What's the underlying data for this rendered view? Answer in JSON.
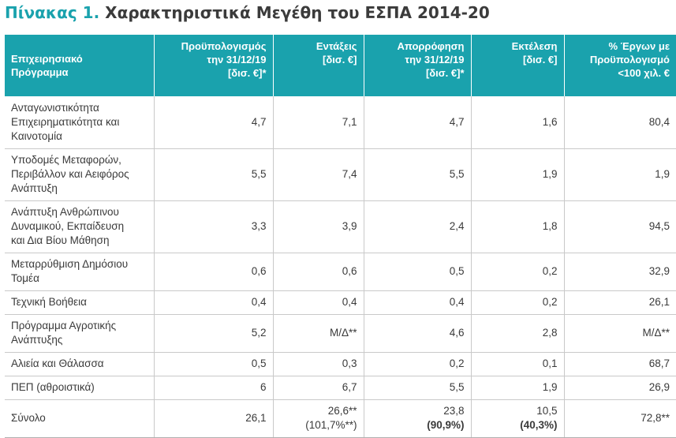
{
  "title": {
    "label": "Πίνακας 1.",
    "text": "Χαρακτηριστικά Μεγέθη του ΕΣΠΑ 2014-20"
  },
  "columns": [
    [
      "Επιχειρησιακό",
      "Πρόγραμμα"
    ],
    [
      "Προϋπολογισμός",
      "την 31/12/19",
      "[δισ. €]*"
    ],
    [
      "Εντάξεις",
      "[δισ. €]"
    ],
    [
      "Απορρόφηση",
      "την 31/12/19",
      "[δισ. €]*"
    ],
    [
      "Εκτέλεση",
      "[δισ. €]"
    ],
    [
      "% Έργων με",
      "Προϋπολογισμό",
      "<100 χιλ. €"
    ]
  ],
  "rows": [
    {
      "program": [
        "Ανταγωνιστικότητα",
        "Επιχειρηματικότητα και",
        "Καινοτομία"
      ],
      "budget": "4,7",
      "entaxeis": "7,1",
      "absorption": "4,7",
      "execution": "1,6",
      "pct": "80,4"
    },
    {
      "program": [
        "Υποδομές Μεταφορών,",
        "Περιβάλλον και Αειφόρος",
        "Ανάπτυξη"
      ],
      "budget": "5,5",
      "entaxeis": "7,4",
      "absorption": "5,5",
      "execution": "1,9",
      "pct": "1,9"
    },
    {
      "program": [
        "Ανάπτυξη Ανθρώπινου",
        "Δυναμικού, Εκπαίδευση",
        "και Δια Βίου Μάθηση"
      ],
      "budget": "3,3",
      "entaxeis": "3,9",
      "absorption": "2,4",
      "execution": "1,8",
      "pct": "94,5"
    },
    {
      "program": [
        "Μεταρρύθμιση Δημόσιου",
        "Τομέα"
      ],
      "budget": "0,6",
      "entaxeis": "0,6",
      "absorption": "0,5",
      "execution": "0,2",
      "pct": "32,9"
    },
    {
      "program": [
        "Τεχνική Βοήθεια"
      ],
      "budget": "0,4",
      "entaxeis": "0,4",
      "absorption": "0,4",
      "execution": "0,2",
      "pct": "26,1"
    },
    {
      "program": [
        "Πρόγραμμα Αγροτικής",
        "Ανάπτυξης"
      ],
      "budget": "5,2",
      "entaxeis": "Μ/Δ**",
      "absorption": "4,6",
      "execution": "2,8",
      "pct": "Μ/Δ**"
    },
    {
      "program": [
        "Αλιεία και Θάλασσα"
      ],
      "budget": "0,5",
      "entaxeis": "0,3",
      "absorption": "0,2",
      "execution": "0,1",
      "pct": "68,7"
    },
    {
      "program": [
        "ΠΕΠ (αθροιστικά)"
      ],
      "budget": "6",
      "entaxeis": "6,7",
      "absorption": "5,5",
      "execution": "1,9",
      "pct": "26,9"
    }
  ],
  "total": {
    "program": "Σύνολο",
    "budget": "26,1",
    "entaxeis": "26,6**",
    "entaxeis_pct": "(101,7%**)",
    "absorption": "23,8",
    "absorption_pct": "(90,9%)",
    "execution": "10,5",
    "execution_pct": "(40,3%)",
    "pct": "72,8**"
  }
}
